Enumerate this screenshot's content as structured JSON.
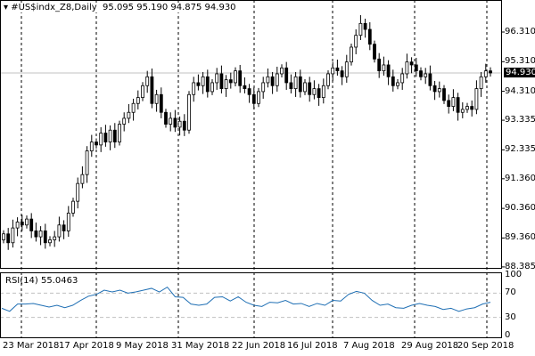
{
  "header": {
    "symbol": "#US$indx_Z8,Daily",
    "ohlc": "95.095 95.190 94.875 94.930"
  },
  "current_price": "94.930",
  "price_axis": [
    "96.310",
    "95.310",
    "94.310",
    "93.335",
    "92.335",
    "91.360",
    "90.360",
    "89.360",
    "88.385"
  ],
  "rsi": {
    "label": "RSI(14) 55.0463",
    "axis": [
      "100",
      "70",
      "30",
      "0"
    ]
  },
  "date_axis": [
    "23 Mar 2018",
    "17 Apr 2018",
    "9 May 2018",
    "31 May 2018",
    "22 Jun 2018",
    "16 Jul 2018",
    "7 Aug 2018",
    "29 Aug 2018",
    "20 Sep 2018"
  ],
  "chart_data": {
    "type": "candlestick",
    "closes": [
      89.5,
      89.2,
      89.7,
      89.9,
      89.8,
      90.0,
      89.6,
      89.4,
      89.6,
      89.2,
      89.3,
      89.4,
      89.8,
      89.6,
      90.2,
      90.6,
      91.2,
      91.5,
      92.3,
      92.6,
      92.5,
      92.9,
      92.6,
      93.0,
      92.6,
      93.2,
      93.4,
      93.6,
      93.9,
      94.1,
      94.5,
      94.8,
      93.9,
      94.2,
      93.6,
      93.2,
      93.4,
      93.1,
      93.3,
      93.0,
      94.2,
      94.6,
      94.5,
      94.8,
      94.3,
      94.6,
      94.9,
      94.4,
      94.7,
      94.6,
      95.0,
      94.5,
      94.4,
      94.2,
      93.9,
      94.3,
      94.6,
      94.8,
      94.5,
      94.9,
      95.1,
      94.6,
      94.4,
      94.8,
      94.3,
      94.6,
      94.2,
      94.4,
      94.1,
      94.5,
      94.9,
      95.1,
      95.0,
      94.8,
      95.3,
      95.8,
      96.2,
      96.6,
      96.4,
      95.9,
      95.4,
      95.0,
      95.2,
      94.8,
      94.5,
      94.6,
      94.9,
      95.3,
      95.2,
      95.0,
      94.8,
      94.9,
      94.5,
      94.3,
      94.4,
      94.0,
      93.8,
      94.1,
      93.6,
      93.7,
      93.8,
      93.7,
      94.4,
      94.8,
      95.0,
      94.93
    ],
    "rsi_values": [
      45,
      40,
      52,
      52,
      53,
      50,
      47,
      50,
      46,
      50,
      58,
      65,
      68,
      75,
      72,
      75,
      70,
      72,
      75,
      78,
      72,
      80,
      64,
      63,
      52,
      50,
      52,
      63,
      64,
      57,
      64,
      55,
      50,
      48,
      55,
      54,
      58,
      52,
      53,
      48,
      53,
      50,
      58,
      57,
      68,
      73,
      70,
      58,
      50,
      52,
      46,
      45,
      50,
      53,
      50,
      48,
      43,
      45,
      40,
      44,
      46,
      52,
      55
    ],
    "ylim": [
      88.385,
      96.8
    ],
    "rsi_ylim": [
      0,
      100
    ]
  }
}
